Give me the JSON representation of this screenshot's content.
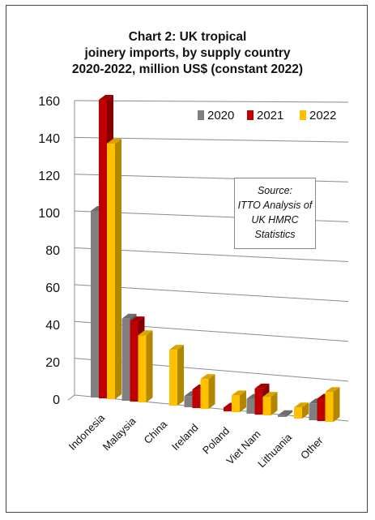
{
  "chart_data": {
    "type": "bar",
    "title_lines": [
      "Chart 2: UK tropical",
      "joinery imports, by supply country",
      "2020-2022, million US$ (constant 2022)"
    ],
    "categories": [
      "Indonesia",
      "Malaysia",
      "China",
      "Ireland",
      "Poland",
      "Viet Nam",
      "Lithuania",
      "Other"
    ],
    "series": [
      {
        "name": "2020",
        "color": "#808080",
        "values": [
          100,
          44,
          0,
          6,
          0,
          8,
          1,
          9
        ]
      },
      {
        "name": "2021",
        "color": "#c00000",
        "values": [
          160,
          43,
          0,
          10,
          2,
          14,
          0,
          12
        ]
      },
      {
        "name": "2022",
        "color": "#ffc000",
        "values": [
          137,
          36,
          30,
          16,
          9,
          10,
          6,
          16
        ]
      }
    ],
    "yticks": [
      "0",
      "20",
      "40",
      "60",
      "80",
      "100",
      "120",
      "140",
      "160"
    ],
    "ylim": [
      0,
      160
    ],
    "grid": true,
    "style": "3d-clustered-column",
    "legend_position": "top-right",
    "annotation": [
      "Source:",
      "ITTO Analysis of",
      "UK HMRC",
      "Statistics"
    ]
  }
}
